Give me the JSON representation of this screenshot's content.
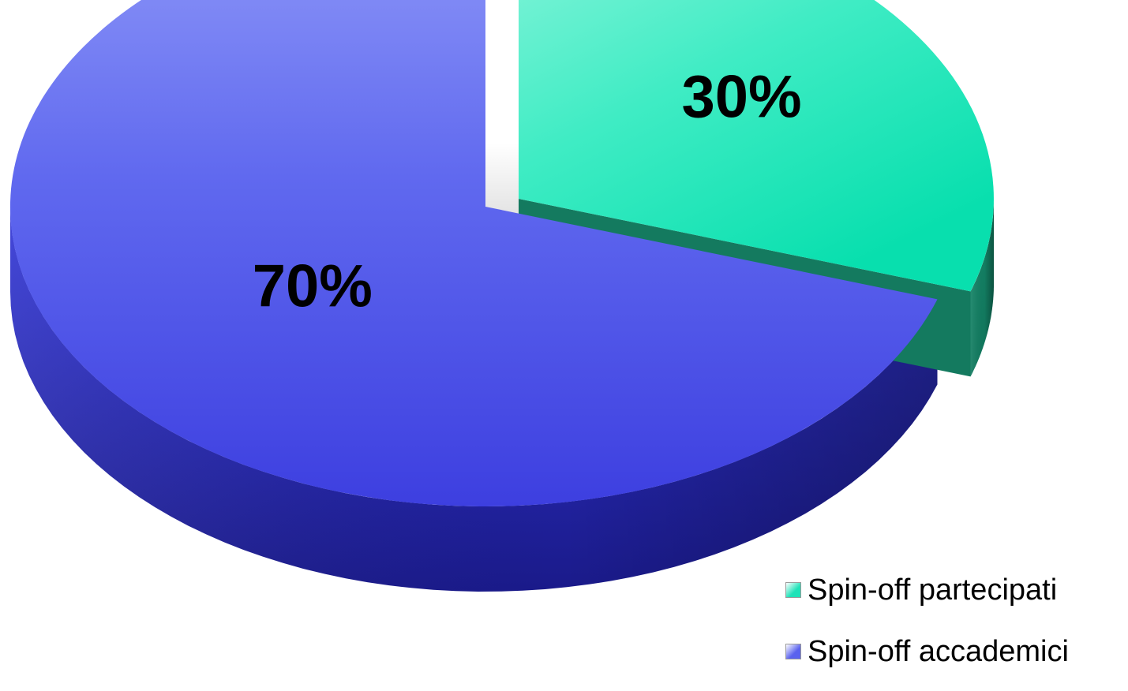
{
  "chart_data": {
    "type": "pie",
    "style": "3d-exploded",
    "title": "",
    "slices": [
      {
        "label": "Spin-off partecipati",
        "value": 30,
        "data_label": "30%",
        "color": "#1fe2b8"
      },
      {
        "label": "Spin-off accademici",
        "value": 70,
        "data_label": "70%",
        "color": "#5a62ee"
      }
    ],
    "legend": {
      "placement": "bottom-right",
      "items": [
        {
          "label": "Spin-off partecipati",
          "color": "#1fe2b8"
        },
        {
          "label": "Spin-off accademici",
          "color": "#5a62ee"
        }
      ]
    }
  }
}
